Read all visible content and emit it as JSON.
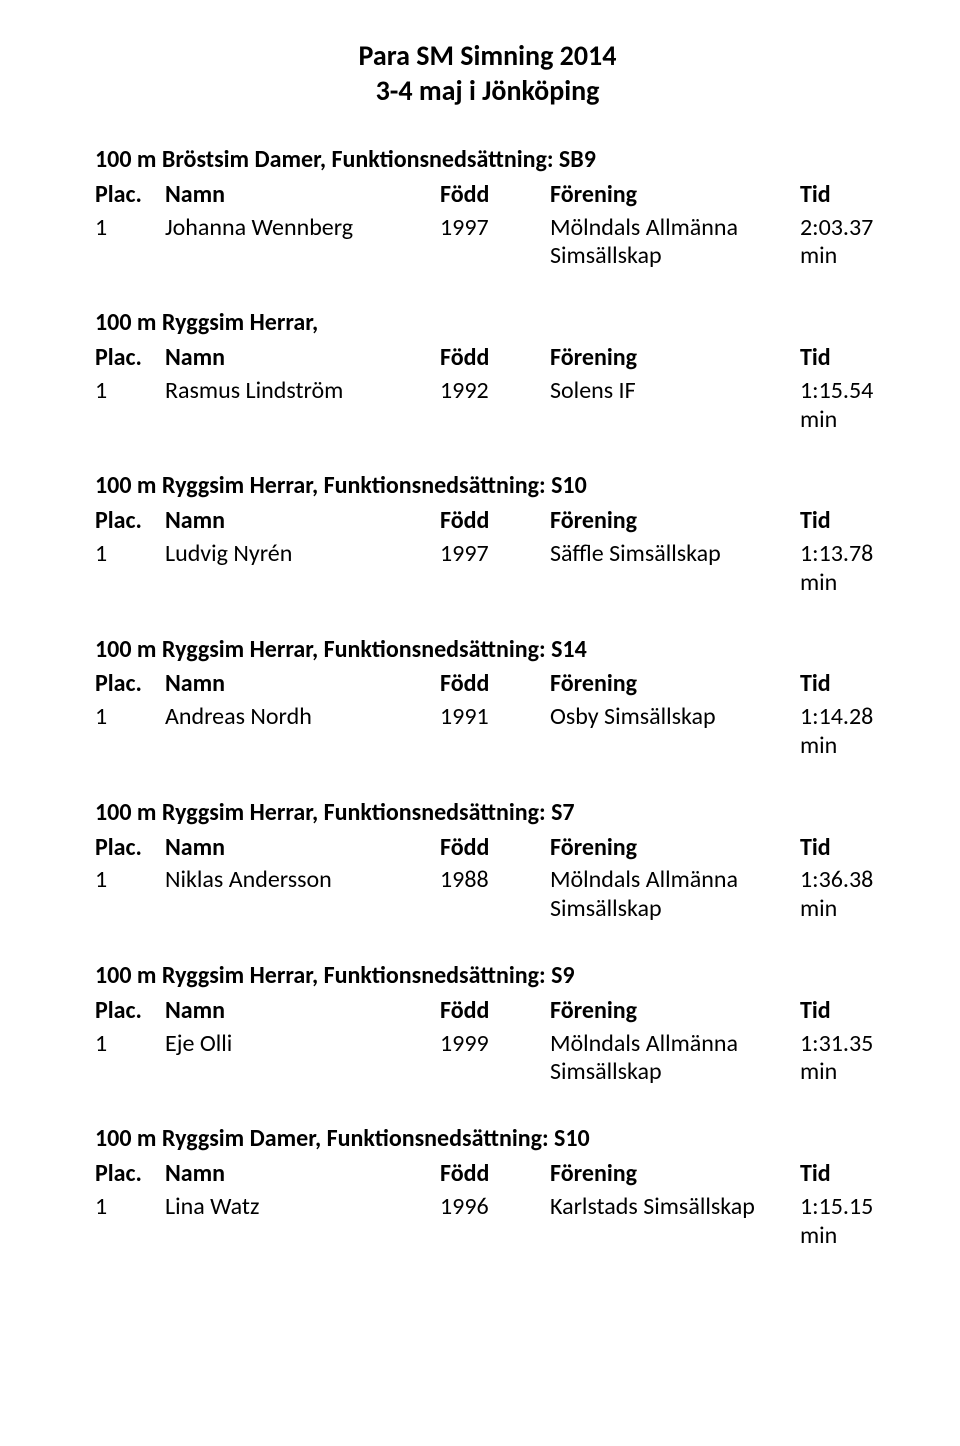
{
  "title_line1": "Para SM Simning 2014",
  "title_line2": "3-4 maj i Jönköping",
  "col_labels": {
    "plac": "Plac.",
    "namn": "Namn",
    "fodd": "Född",
    "forening": "Förening",
    "tid": "Tid"
  },
  "sections": [
    {
      "heading": "100 m Bröstsim Damer, Funktionsnedsättning: SB9",
      "rows": [
        {
          "plac": "1",
          "namn": "Johanna Wennberg",
          "fodd": "1997",
          "forening": "Mölndals Allmänna Simsällskap",
          "tid": "2:03.37 min",
          "multiline": true
        }
      ]
    },
    {
      "heading": "100 m Ryggsim Herrar,",
      "rows": [
        {
          "plac": "1",
          "namn": "Rasmus Lindström",
          "fodd": "1992",
          "forening": "Solens IF",
          "tid": "1:15.54 min"
        }
      ]
    },
    {
      "heading": "100 m Ryggsim Herrar, Funktionsnedsättning: S10",
      "rows": [
        {
          "plac": "1",
          "namn": "Ludvig Nyrén",
          "fodd": "1997",
          "forening": "Säffle Simsällskap",
          "tid": "1:13.78 min"
        }
      ]
    },
    {
      "heading": "100 m Ryggsim Herrar, Funktionsnedsättning: S14",
      "rows": [
        {
          "plac": "1",
          "namn": "Andreas Nordh",
          "fodd": "1991",
          "forening": "Osby Simsällskap",
          "tid": "1:14.28 min"
        }
      ]
    },
    {
      "heading": "100 m Ryggsim Herrar, Funktionsnedsättning: S7",
      "rows": [
        {
          "plac": "1",
          "namn": "Niklas Andersson",
          "fodd": "1988",
          "forening": "Mölndals Allmänna Simsällskap",
          "tid": "1:36.38 min",
          "multiline": true
        }
      ]
    },
    {
      "heading": "100 m Ryggsim Herrar, Funktionsnedsättning: S9",
      "rows": [
        {
          "plac": "1",
          "namn": "Eje Olli",
          "fodd": "1999",
          "forening": "Mölndals Allmänna Simsällskap",
          "tid": "1:31.35 min",
          "multiline": true
        }
      ]
    },
    {
      "heading": "100 m Ryggsim Damer, Funktionsnedsättning: S10",
      "rows": [
        {
          "plac": "1",
          "namn": "Lina Watz",
          "fodd": "1996",
          "forening": "Karlstads Simsällskap",
          "tid": "1:15.15 min"
        }
      ]
    }
  ],
  "typography": {
    "title_fontsize": 28,
    "heading_fontsize": 24,
    "body_fontsize": 24,
    "font_family": "Calibri",
    "text_color": "#000000",
    "background_color": "#ffffff"
  }
}
